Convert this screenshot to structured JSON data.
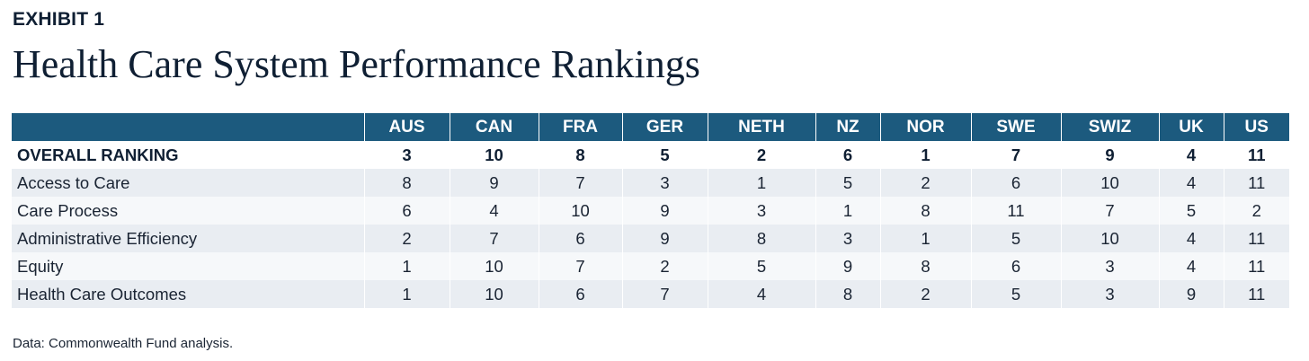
{
  "exhibit_label": "EXHIBIT 1",
  "source_note": "Data: Commonwealth Fund analysis.",
  "chart_data": {
    "type": "table",
    "title": "Health Care System Performance Rankings",
    "columns": [
      "AUS",
      "CAN",
      "FRA",
      "GER",
      "NETH",
      "NZ",
      "NOR",
      "SWE",
      "SWIZ",
      "UK",
      "US"
    ],
    "rows": [
      {
        "label": "OVERALL RANKING",
        "values": [
          3,
          10,
          8,
          5,
          2,
          6,
          1,
          7,
          9,
          4,
          11
        ],
        "emphasis": true
      },
      {
        "label": "Access to Care",
        "values": [
          8,
          9,
          7,
          3,
          1,
          5,
          2,
          6,
          10,
          4,
          11
        ]
      },
      {
        "label": "Care Process",
        "values": [
          6,
          4,
          10,
          9,
          3,
          1,
          8,
          11,
          7,
          5,
          2
        ]
      },
      {
        "label": "Administrative Efficiency",
        "values": [
          2,
          7,
          6,
          9,
          8,
          3,
          1,
          5,
          10,
          4,
          11
        ]
      },
      {
        "label": "Equity",
        "values": [
          1,
          10,
          7,
          2,
          5,
          9,
          8,
          6,
          3,
          4,
          11
        ]
      },
      {
        "label": "Health Care Outcomes",
        "values": [
          1,
          10,
          6,
          7,
          4,
          8,
          2,
          5,
          3,
          9,
          11
        ]
      }
    ]
  },
  "colors": {
    "header_bg": "#1c5a7e",
    "header_text": "#ffffff",
    "row_shade": "#e9edf2",
    "row_light": "#f6f8fa",
    "text_dark": "#0f1f33"
  }
}
